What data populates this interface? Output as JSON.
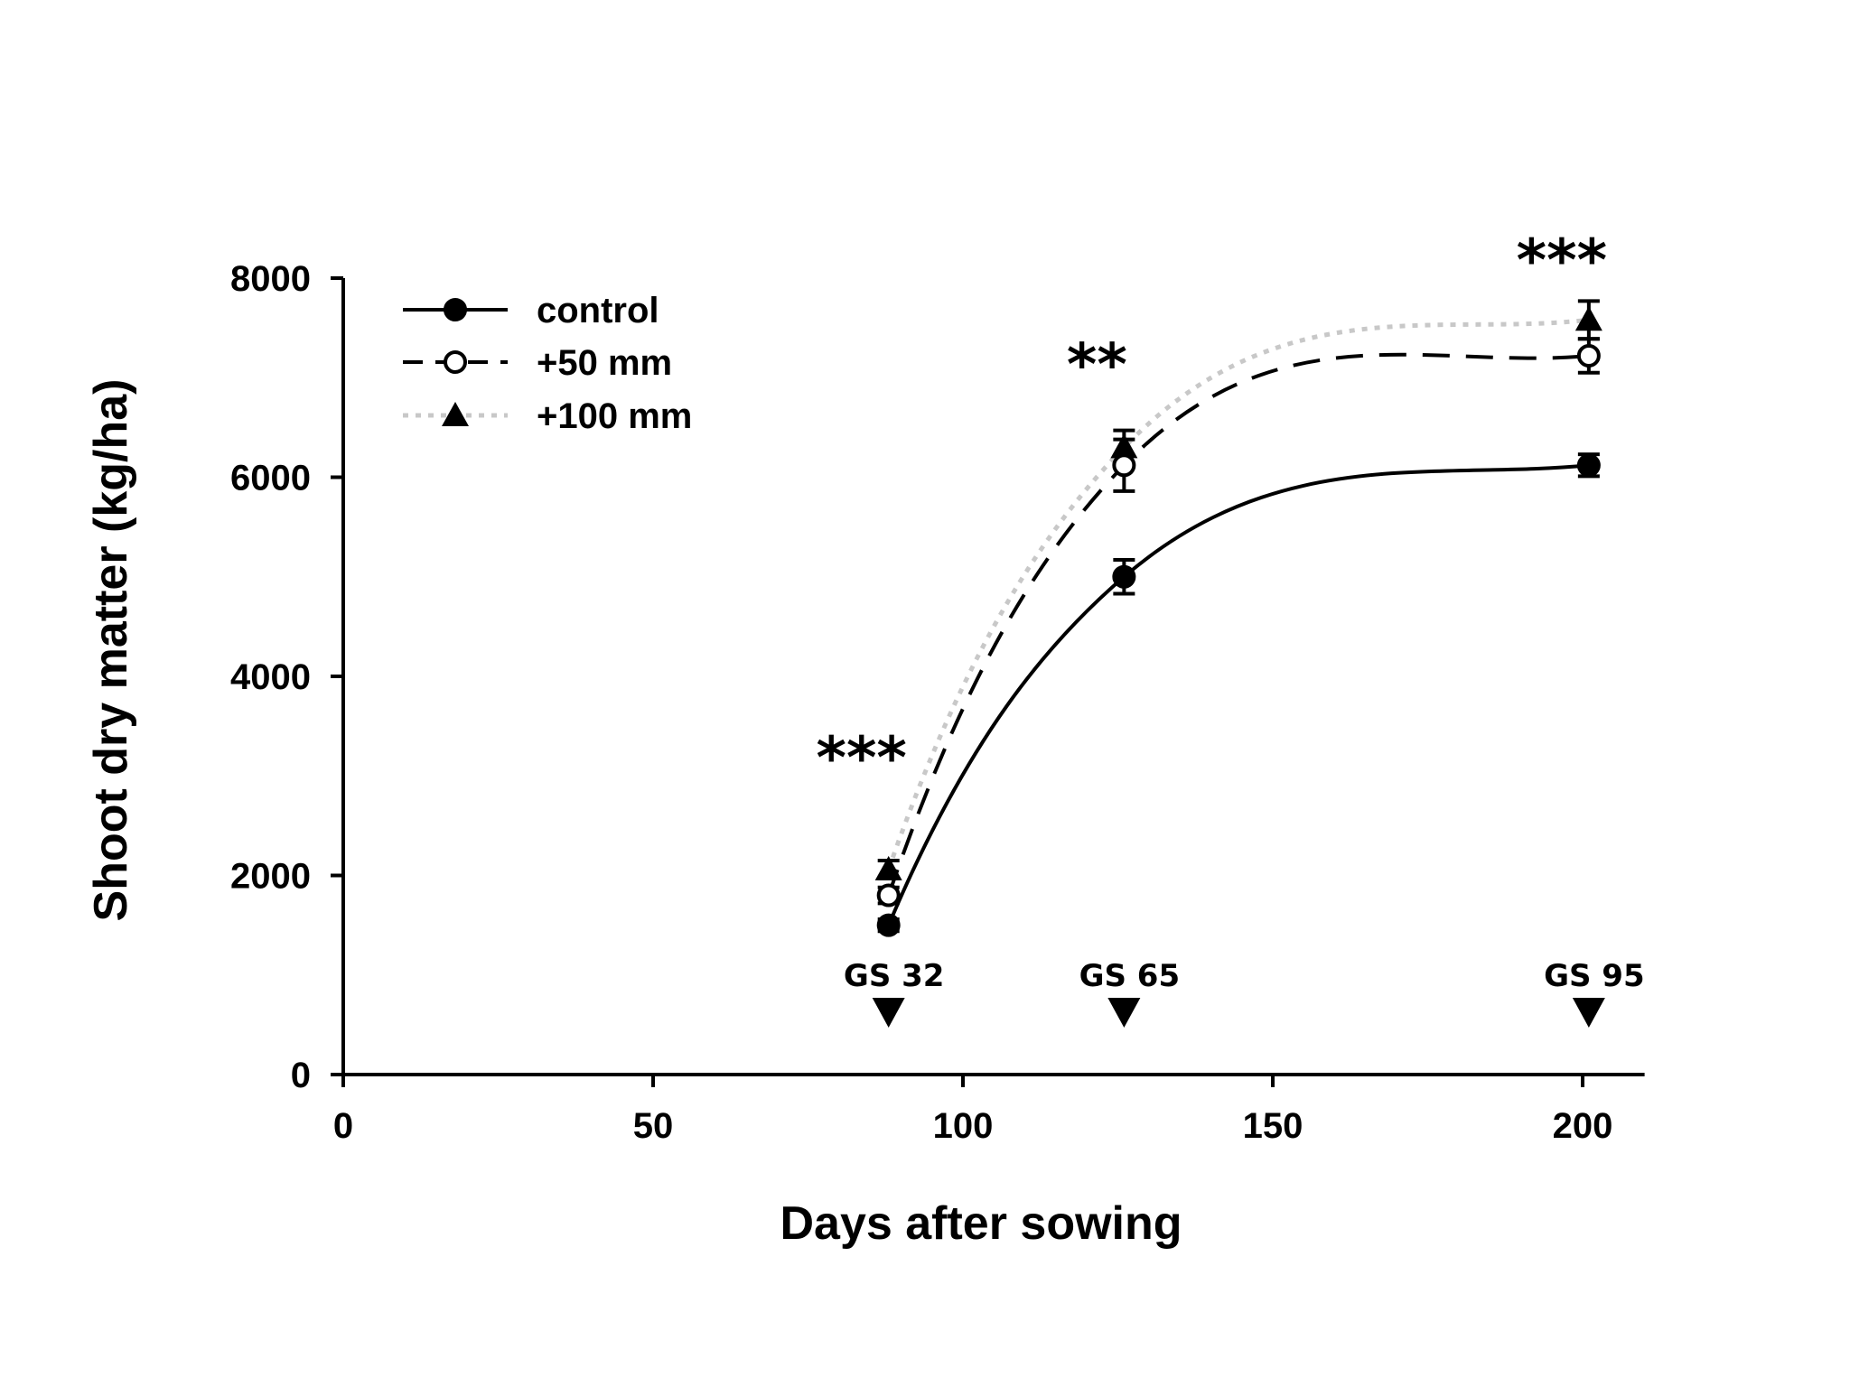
{
  "chart_data": {
    "type": "line",
    "title": "",
    "xlabel": "Days after sowing",
    "ylabel": "Shoot dry matter (kg/ha)",
    "xlim": [
      0,
      210
    ],
    "ylim": [
      0,
      8000
    ],
    "x_ticks": [
      0,
      50,
      100,
      150,
      200
    ],
    "y_ticks": [
      0,
      2000,
      4000,
      6000,
      8000
    ],
    "grid": false,
    "legend_position": "top-left",
    "x": [
      88,
      126,
      201
    ],
    "series": [
      {
        "name": "control",
        "marker": "filled-circle",
        "line_style": "solid",
        "color": "#000000",
        "values": [
          1500,
          5000,
          6120
        ],
        "errors": [
          60,
          170,
          110
        ]
      },
      {
        "name": "+50 mm",
        "marker": "open-circle",
        "line_style": "dashed",
        "color": "#000000",
        "values": [
          1800,
          6120,
          7220
        ],
        "errors": [
          80,
          260,
          170
        ]
      },
      {
        "name": "+100 mm",
        "marker": "filled-triangle",
        "line_style": "dotted",
        "color": "#c8c8c8",
        "values": [
          2060,
          6300,
          7580
        ],
        "errors": [
          90,
          170,
          190
        ]
      }
    ],
    "annotations": [
      {
        "text": "***",
        "x": 88,
        "y": 3250
      },
      {
        "text": "**",
        "x": 126,
        "y": 7200
      },
      {
        "text": "***",
        "x": 201,
        "y": 8250
      }
    ],
    "growth_stages": [
      {
        "label": "GS 32",
        "x": 88
      },
      {
        "label": "GS 65",
        "x": 126
      },
      {
        "label": "GS 95",
        "x": 201
      }
    ]
  }
}
